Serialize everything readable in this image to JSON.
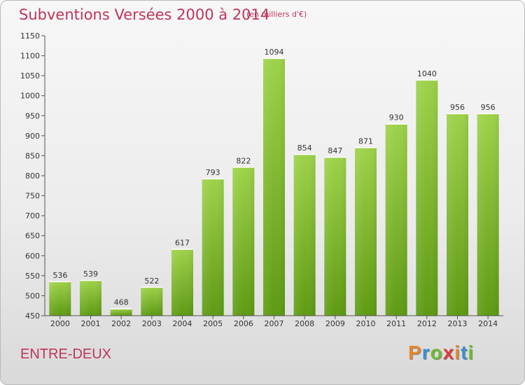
{
  "title": "Subventions Versées 2000 à 2014",
  "unit_note": "(en milliers d'€)",
  "commune": "ENTRE-DEUX",
  "logo": {
    "letters": [
      "P",
      "r",
      "o",
      "x",
      "i",
      "t",
      "i"
    ],
    "colors": [
      "#e8862a",
      "#3a8fd6",
      "#6dbb2c",
      "#d93a3a",
      "#e8862a",
      "#3a8fd6",
      "#6dbb2c"
    ]
  },
  "colors": {
    "title": "#c0345a",
    "bar_light": "#9ed24a",
    "bar_dark": "#5e9a12"
  },
  "chart_data": {
    "type": "bar",
    "title": "Subventions Versées 2000 à 2014",
    "categories": [
      "2000",
      "2001",
      "2002",
      "2003",
      "2004",
      "2005",
      "2006",
      "2007",
      "2008",
      "2009",
      "2010",
      "2011",
      "2012",
      "2013",
      "2014"
    ],
    "values": [
      536,
      539,
      468,
      522,
      617,
      793,
      822,
      1094,
      854,
      847,
      871,
      930,
      1040,
      956,
      956
    ],
    "ylim": [
      450,
      1150
    ],
    "yticks": [
      450,
      500,
      550,
      600,
      650,
      700,
      750,
      800,
      850,
      900,
      950,
      1000,
      1050,
      1100,
      1150
    ],
    "grid": false,
    "data_labels": true
  }
}
